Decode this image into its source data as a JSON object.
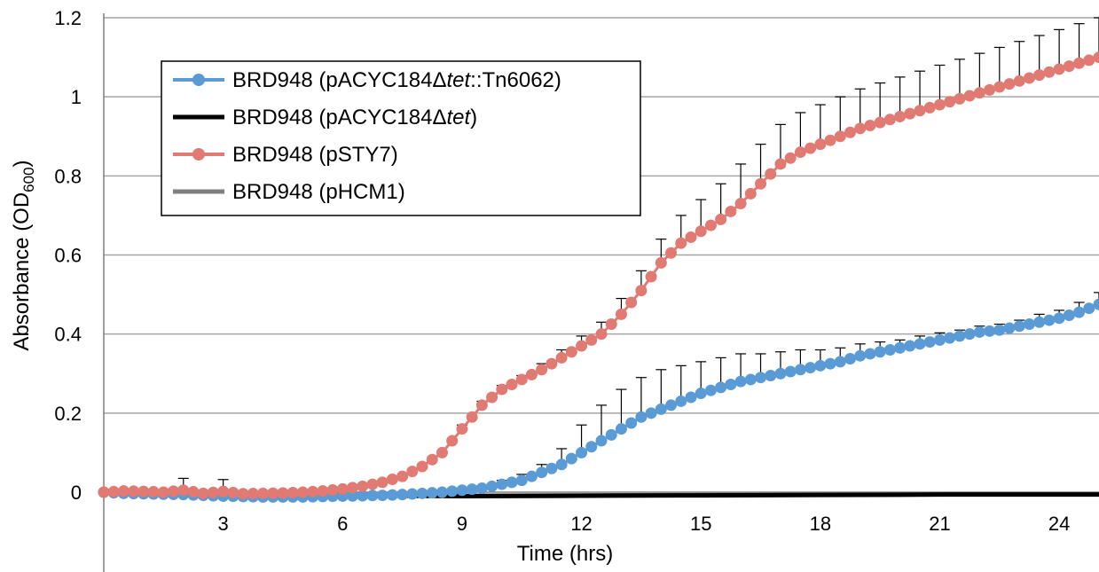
{
  "chart_data": {
    "type": "line",
    "xlabel": "Time (hrs)",
    "ylabel": {
      "main": "Absorbance (OD",
      "sub": "600",
      "close": ")"
    },
    "xlim": [
      0,
      25
    ],
    "ylim": [
      0,
      1.2
    ],
    "xticks": [
      3,
      6,
      9,
      12,
      15,
      18,
      21,
      24
    ],
    "xtick_labels": [
      "3",
      "6",
      "9",
      "12",
      "15",
      "18",
      "21",
      "24"
    ],
    "yticks": [
      0,
      0.2,
      0.4,
      0.6,
      0.8,
      1,
      1.2
    ],
    "ytick_labels": [
      "0",
      "0.2",
      "0.4",
      "0.6",
      "0.8",
      "1",
      "1.2"
    ],
    "grid": "horizontal",
    "legend_position": "top-left",
    "series": [
      {
        "name_parts": [
          {
            "text": "BRD948 (pACYC184Δ",
            "italic": false
          },
          {
            "text": "tet",
            "italic": true
          },
          {
            "text": "::Tn6062)",
            "italic": false
          }
        ],
        "color": "#5B9BD5",
        "markers": true,
        "error_bars": true,
        "x": [
          0,
          0.5,
          1,
          1.5,
          2,
          2.5,
          3,
          3.5,
          4,
          4.5,
          5,
          5.5,
          6,
          6.5,
          7,
          7.5,
          8,
          8.5,
          9,
          9.5,
          10,
          10.5,
          11,
          11.5,
          12,
          12.5,
          13,
          13.5,
          14,
          14.5,
          15,
          15.5,
          16,
          16.5,
          17,
          17.5,
          18,
          18.5,
          19,
          19.5,
          20,
          20.5,
          21,
          21.5,
          22,
          22.5,
          23,
          23.5,
          24,
          24.5,
          25
        ],
        "y": [
          0,
          -0.003,
          -0.004,
          -0.005,
          -0.006,
          -0.008,
          -0.01,
          -0.011,
          -0.012,
          -0.012,
          -0.012,
          -0.011,
          -0.01,
          -0.009,
          -0.008,
          -0.006,
          -0.003,
          0.0,
          0.005,
          0.01,
          0.02,
          0.03,
          0.05,
          0.07,
          0.1,
          0.13,
          0.16,
          0.19,
          0.21,
          0.23,
          0.25,
          0.265,
          0.28,
          0.29,
          0.3,
          0.31,
          0.32,
          0.33,
          0.345,
          0.355,
          0.365,
          0.375,
          0.385,
          0.395,
          0.405,
          0.41,
          0.42,
          0.43,
          0.44,
          0.455,
          0.475
        ],
        "err": [
          0,
          0,
          0,
          0,
          0,
          0,
          0,
          0,
          0,
          0,
          0,
          0,
          0,
          0,
          0,
          0,
          0,
          0,
          0.003,
          0.006,
          0.01,
          0.015,
          0.02,
          0.04,
          0.07,
          0.09,
          0.1,
          0.1,
          0.1,
          0.09,
          0.08,
          0.075,
          0.07,
          0.06,
          0.055,
          0.05,
          0.04,
          0.035,
          0.03,
          0.025,
          0.02,
          0.02,
          0.018,
          0.015,
          0.015,
          0.015,
          0.015,
          0.02,
          0.02,
          0.025,
          0.03
        ]
      },
      {
        "name_parts": [
          {
            "text": "BRD948 (pACYC184Δ",
            "italic": false
          },
          {
            "text": "tet",
            "italic": true
          },
          {
            "text": ")",
            "italic": false
          }
        ],
        "color": "#000000",
        "markers": false,
        "error_bars": false,
        "x": [
          0,
          3,
          6,
          9,
          12,
          15,
          18,
          21,
          24,
          25
        ],
        "y": [
          0,
          -0.004,
          -0.008,
          -0.01,
          -0.009,
          -0.008,
          -0.007,
          -0.006,
          -0.006,
          -0.006
        ],
        "err": []
      },
      {
        "name_parts": [
          {
            "text": "BRD948 (pSTY7)",
            "italic": false
          }
        ],
        "color": "#E07A72",
        "markers": true,
        "error_bars": true,
        "x": [
          0,
          0.5,
          1,
          1.5,
          2,
          2.5,
          3,
          3.5,
          4,
          4.5,
          5,
          5.5,
          6,
          6.5,
          7,
          7.5,
          8,
          8.5,
          9,
          9.5,
          10,
          10.5,
          11,
          11.5,
          12,
          12.5,
          13,
          13.5,
          14,
          14.5,
          15,
          15.5,
          16,
          16.5,
          17,
          17.5,
          18,
          18.5,
          19,
          19.5,
          20,
          20.5,
          21,
          21.5,
          22,
          22.5,
          23,
          23.5,
          24,
          24.5,
          25
        ],
        "y": [
          0,
          0.003,
          0.002,
          0.0,
          0.005,
          -0.003,
          0.002,
          -0.004,
          -0.003,
          -0.002,
          0.0,
          0.003,
          0.008,
          0.015,
          0.025,
          0.04,
          0.065,
          0.1,
          0.16,
          0.22,
          0.26,
          0.285,
          0.31,
          0.34,
          0.37,
          0.4,
          0.45,
          0.51,
          0.58,
          0.63,
          0.66,
          0.69,
          0.73,
          0.78,
          0.83,
          0.86,
          0.88,
          0.9,
          0.92,
          0.935,
          0.95,
          0.965,
          0.98,
          0.995,
          1.01,
          1.025,
          1.04,
          1.055,
          1.07,
          1.085,
          1.1
        ],
        "err": [
          0,
          0,
          0,
          0,
          0.03,
          0,
          0.03,
          0,
          0,
          0,
          0,
          0,
          0,
          0,
          0,
          0,
          0,
          0.005,
          0.01,
          0.01,
          0.01,
          0.01,
          0.015,
          0.02,
          0.025,
          0.03,
          0.04,
          0.05,
          0.06,
          0.07,
          0.08,
          0.09,
          0.1,
          0.1,
          0.1,
          0.1,
          0.1,
          0.1,
          0.1,
          0.1,
          0.1,
          0.1,
          0.1,
          0.1,
          0.1,
          0.1,
          0.1,
          0.1,
          0.1,
          0.1,
          0.1
        ]
      },
      {
        "name_parts": [
          {
            "text": "BRD948 (pHCM1)",
            "italic": false
          }
        ],
        "color": "#808080",
        "markers": false,
        "error_bars": false,
        "x": [
          0,
          3,
          6,
          9,
          12,
          15,
          18,
          21,
          24,
          25
        ],
        "y": [
          0,
          -0.003,
          -0.007,
          -0.009,
          -0.008,
          -0.007,
          -0.006,
          -0.005,
          -0.005,
          -0.005
        ],
        "err": []
      }
    ]
  }
}
